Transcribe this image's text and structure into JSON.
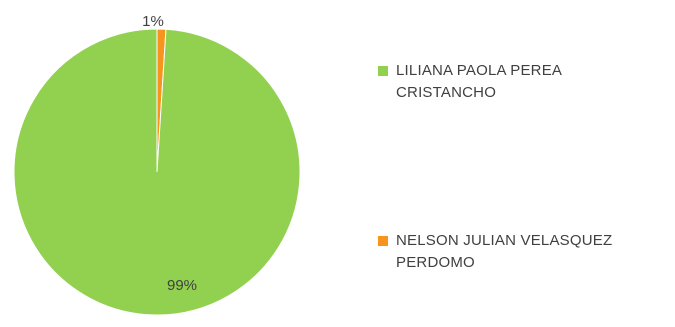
{
  "chart_data": {
    "type": "pie",
    "title": "",
    "slices": [
      {
        "label": "LILIANA PAOLA PEREA CRISTANCHO",
        "value": 99,
        "display": "99%",
        "color": "#92d050"
      },
      {
        "label": "NELSON JULIAN VELASQUEZ PERDOMO",
        "value": 1,
        "display": "1%",
        "color": "#f7941d"
      }
    ],
    "legend_position": "right",
    "legend": [
      {
        "line1": "LILIANA PAOLA PEREA",
        "line2": "CRISTANCHO",
        "color": "#92d050"
      },
      {
        "line1": "NELSON JULIAN VELASQUEZ",
        "line2": "PERDOMO",
        "color": "#f7941d"
      }
    ]
  }
}
